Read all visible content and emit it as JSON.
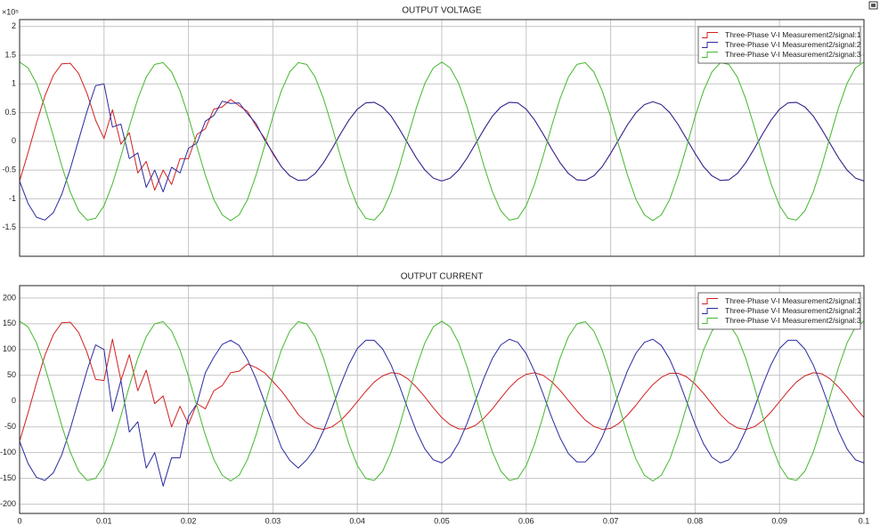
{
  "chart_data": [
    {
      "type": "line",
      "title": "OUTPUT VOLTAGE",
      "y_multiplier": "×10⁵",
      "x": [
        0,
        0.001,
        0.002,
        0.003,
        0.004,
        0.005,
        0.006,
        0.007,
        0.008,
        0.009,
        0.01,
        0.011,
        0.012,
        0.013,
        0.014,
        0.015,
        0.016,
        0.017,
        0.018,
        0.019,
        0.02,
        0.021,
        0.022,
        0.023,
        0.024,
        0.025,
        0.026,
        0.027,
        0.028,
        0.029,
        0.03,
        0.031,
        0.032,
        0.033,
        0.034,
        0.035,
        0.036,
        0.037,
        0.038,
        0.039,
        0.04,
        0.041,
        0.042,
        0.043,
        0.044,
        0.045,
        0.046,
        0.047,
        0.048,
        0.049,
        0.05,
        0.051,
        0.052,
        0.053,
        0.054,
        0.055,
        0.056,
        0.057,
        0.058,
        0.059,
        0.06,
        0.061,
        0.062,
        0.063,
        0.064,
        0.065,
        0.066,
        0.067,
        0.068,
        0.069,
        0.07,
        0.071,
        0.072,
        0.073,
        0.074,
        0.075,
        0.076,
        0.077,
        0.078,
        0.079,
        0.08,
        0.081,
        0.082,
        0.083,
        0.084,
        0.085,
        0.086,
        0.087,
        0.088,
        0.089,
        0.09,
        0.091,
        0.092,
        0.093,
        0.094,
        0.095,
        0.096,
        0.097,
        0.098,
        0.099,
        0.1
      ],
      "series": [
        {
          "name": "Three-Phase V-I Measurement2/signal:1",
          "color": "#d02020",
          "values": [
            -0.69,
            -0.2,
            0.32,
            0.79,
            1.15,
            1.35,
            1.36,
            1.18,
            0.83,
            0.37,
            0.05,
            0.55,
            -0.05,
            0.15,
            -0.55,
            -0.35,
            -0.85,
            -0.5,
            -0.75,
            -0.3,
            -0.3,
            0.12,
            0.22,
            0.56,
            0.6,
            0.73,
            0.62,
            0.52,
            0.27,
            0.06,
            -0.22,
            -0.44,
            -0.6,
            -0.68,
            -0.67,
            -0.56,
            -0.37,
            -0.13,
            0.13,
            0.37,
            0.56,
            0.67,
            0.68,
            0.6,
            0.44,
            0.21,
            -0.04,
            -0.29,
            -0.5,
            -0.64,
            -0.69,
            -0.64,
            -0.5,
            -0.29,
            -0.04,
            0.21,
            0.44,
            0.6,
            0.68,
            0.67,
            0.56,
            0.37,
            0.13,
            -0.13,
            -0.37,
            -0.56,
            -0.67,
            -0.68,
            -0.6,
            -0.44,
            -0.21,
            0.04,
            0.29,
            0.5,
            0.64,
            0.69,
            0.64,
            0.5,
            0.29,
            0.04,
            -0.21,
            -0.44,
            -0.6,
            -0.68,
            -0.67,
            -0.56,
            -0.37,
            -0.13,
            0.13,
            0.37,
            0.56,
            0.67,
            0.68,
            0.6,
            0.44,
            0.21,
            -0.04,
            -0.29,
            -0.5,
            -0.64,
            -0.69
          ]
        },
        {
          "name": "Three-Phase V-I Measurement2/signal:2",
          "color": "#2a2aa0",
          "values": [
            -0.69,
            -1.08,
            -1.32,
            -1.37,
            -1.24,
            -0.92,
            -0.48,
            0.03,
            0.53,
            0.97,
            1.0,
            0.25,
            0.3,
            -0.3,
            -0.2,
            -0.8,
            -0.5,
            -0.88,
            -0.45,
            -0.55,
            -0.12,
            -0.03,
            0.35,
            0.45,
            0.7,
            0.66,
            0.67,
            0.48,
            0.31,
            0.03,
            -0.2,
            -0.44,
            -0.6,
            -0.68,
            -0.67,
            -0.56,
            -0.37,
            -0.13,
            0.13,
            0.37,
            0.56,
            0.67,
            0.68,
            0.6,
            0.44,
            0.21,
            -0.04,
            -0.29,
            -0.5,
            -0.64,
            -0.69,
            -0.64,
            -0.5,
            -0.29,
            -0.04,
            0.21,
            0.44,
            0.6,
            0.68,
            0.67,
            0.56,
            0.37,
            0.13,
            -0.13,
            -0.37,
            -0.56,
            -0.67,
            -0.68,
            -0.6,
            -0.44,
            -0.21,
            0.04,
            0.29,
            0.5,
            0.64,
            0.69,
            0.64,
            0.5,
            0.29,
            0.04,
            -0.21,
            -0.44,
            -0.6,
            -0.68,
            -0.67,
            -0.56,
            -0.37,
            -0.13,
            0.13,
            0.37,
            0.56,
            0.67,
            0.68,
            0.6,
            0.44,
            0.21,
            -0.04,
            -0.29,
            -0.5,
            -0.64,
            -0.69
          ]
        },
        {
          "name": "Three-Phase V-I Measurement2/signal:3",
          "color": "#44b82e",
          "values": [
            1.38,
            1.28,
            1.01,
            0.59,
            0.09,
            -0.43,
            -0.88,
            -1.21,
            -1.37,
            -1.34,
            -1.12,
            -0.74,
            -0.26,
            0.26,
            0.74,
            1.12,
            1.34,
            1.37,
            1.21,
            0.88,
            0.43,
            -0.09,
            -0.59,
            -1.01,
            -1.28,
            -1.38,
            -1.28,
            -1.01,
            -0.59,
            -0.09,
            0.43,
            0.88,
            1.21,
            1.37,
            1.34,
            1.12,
            0.74,
            0.26,
            -0.26,
            -0.74,
            -1.12,
            -1.34,
            -1.37,
            -1.21,
            -0.88,
            -0.43,
            0.09,
            0.59,
            1.01,
            1.28,
            1.38,
            1.28,
            1.01,
            0.59,
            0.09,
            -0.43,
            -0.88,
            -1.21,
            -1.37,
            -1.34,
            -1.12,
            -0.74,
            -0.26,
            0.26,
            0.74,
            1.12,
            1.34,
            1.37,
            1.21,
            0.88,
            0.43,
            -0.09,
            -0.59,
            -1.01,
            -1.28,
            -1.38,
            -1.28,
            -1.01,
            -0.59,
            -0.09,
            0.43,
            0.88,
            1.21,
            1.37,
            1.34,
            1.12,
            0.74,
            0.26,
            -0.26,
            -0.74,
            -1.12,
            -1.34,
            -1.37,
            -1.21,
            -0.88,
            -0.43,
            0.09,
            0.59,
            1.01,
            1.28,
            1.38
          ]
        }
      ],
      "xlim": [
        0,
        0.1
      ],
      "ylim": [
        -2,
        2.12
      ],
      "yticks": [
        -1.5,
        -1,
        -0.5,
        0,
        0.5,
        1,
        1.5,
        2
      ],
      "grid": true,
      "legend": "upper right"
    },
    {
      "type": "line",
      "title": "OUTPUT CURRENT",
      "x": [
        0,
        0.001,
        0.002,
        0.003,
        0.004,
        0.005,
        0.006,
        0.007,
        0.008,
        0.009,
        0.01,
        0.011,
        0.012,
        0.013,
        0.014,
        0.015,
        0.016,
        0.017,
        0.018,
        0.019,
        0.02,
        0.021,
        0.022,
        0.023,
        0.024,
        0.025,
        0.026,
        0.027,
        0.028,
        0.029,
        0.03,
        0.031,
        0.032,
        0.033,
        0.034,
        0.035,
        0.036,
        0.037,
        0.038,
        0.039,
        0.04,
        0.041,
        0.042,
        0.043,
        0.044,
        0.045,
        0.046,
        0.047,
        0.048,
        0.049,
        0.05,
        0.051,
        0.052,
        0.053,
        0.054,
        0.055,
        0.056,
        0.057,
        0.058,
        0.059,
        0.06,
        0.061,
        0.062,
        0.063,
        0.064,
        0.065,
        0.066,
        0.067,
        0.068,
        0.069,
        0.07,
        0.071,
        0.072,
        0.073,
        0.074,
        0.075,
        0.076,
        0.077,
        0.078,
        0.079,
        0.08,
        0.081,
        0.082,
        0.083,
        0.084,
        0.085,
        0.086,
        0.087,
        0.088,
        0.089,
        0.09,
        0.091,
        0.092,
        0.093,
        0.094,
        0.095,
        0.096,
        0.097,
        0.098,
        0.099,
        0.1
      ],
      "series": [
        {
          "name": "Three-Phase V-I Measurement2/signal:1",
          "color": "#d02020",
          "values": [
            -78,
            -23,
            35,
            89,
            129,
            152,
            153,
            133,
            94,
            42,
            40,
            120,
            40,
            90,
            20,
            60,
            -5,
            10,
            -50,
            -10,
            -45,
            -5,
            -15,
            20,
            30,
            55,
            58,
            72,
            65,
            55,
            38,
            20,
            -2,
            -26,
            -42,
            -52,
            -55,
            -50,
            -38,
            -21,
            -1,
            19,
            37,
            49,
            55,
            53,
            43,
            27,
            8,
            -13,
            -32,
            -46,
            -54,
            -54,
            -47,
            -33,
            -15,
            6,
            26,
            42,
            52,
            55,
            50,
            38,
            21,
            1,
            -19,
            -37,
            -49,
            -55,
            -53,
            -43,
            -27,
            -8,
            13,
            32,
            46,
            54,
            54,
            47,
            33,
            15,
            -6,
            -26,
            -42,
            -52,
            -55,
            -50,
            -38,
            -21,
            -1,
            19,
            37,
            49,
            55,
            53,
            43,
            27,
            8,
            -13,
            -32
          ]
        },
        {
          "name": "Three-Phase V-I Measurement2/signal:2",
          "color": "#2a2aa0",
          "values": [
            -78,
            -121,
            -148,
            -154,
            -139,
            -104,
            -54,
            3,
            60,
            109,
            100,
            -20,
            40,
            -60,
            -40,
            -130,
            -100,
            -165,
            -110,
            -110,
            -30,
            -5,
            55,
            85,
            110,
            118,
            108,
            80,
            43,
            -1,
            -45,
            -90,
            -115,
            -130,
            -114,
            -92,
            -57,
            -14,
            31,
            71,
            102,
            118,
            118,
            101,
            70,
            29,
            -16,
            -59,
            -93,
            -114,
            -120,
            -108,
            -81,
            -43,
            1,
            45,
            83,
            109,
            120,
            114,
            92,
            57,
            14,
            -31,
            -71,
            -102,
            -118,
            -118,
            -101,
            -70,
            -29,
            16,
            59,
            93,
            114,
            120,
            108,
            81,
            43,
            -1,
            -45,
            -83,
            -109,
            -120,
            -114,
            -92,
            -57,
            -14,
            31,
            71,
            102,
            118,
            118,
            101,
            70,
            29,
            -16,
            -59,
            -93,
            -114,
            -120
          ]
        },
        {
          "name": "Three-Phase V-I Measurement2/signal:3",
          "color": "#44b82e",
          "values": [
            155,
            144,
            113,
            66,
            10,
            -48,
            -99,
            -136,
            -154,
            -150,
            -125,
            -83,
            -29,
            29,
            83,
            125,
            150,
            154,
            136,
            99,
            48,
            -10,
            -66,
            -113,
            -144,
            -155,
            -144,
            -113,
            -66,
            -10,
            48,
            99,
            136,
            154,
            150,
            125,
            83,
            29,
            -29,
            -83,
            -125,
            -150,
            -154,
            -136,
            -99,
            -48,
            10,
            66,
            113,
            144,
            155,
            144,
            113,
            66,
            10,
            -48,
            -99,
            -136,
            -154,
            -150,
            -125,
            -83,
            -29,
            29,
            83,
            125,
            150,
            154,
            136,
            99,
            48,
            -10,
            -66,
            -113,
            -144,
            -155,
            -144,
            -113,
            -66,
            -10,
            48,
            99,
            136,
            154,
            150,
            125,
            83,
            29,
            -29,
            -83,
            -125,
            -150,
            -154,
            -136,
            -99,
            -48,
            10,
            66,
            113,
            144,
            155
          ]
        }
      ],
      "xlim": [
        0,
        0.1
      ],
      "ylim": [
        -218,
        224
      ],
      "xticks": [
        0,
        0.01,
        0.02,
        0.03,
        0.04,
        0.05,
        0.06,
        0.07,
        0.08,
        0.09,
        0.1
      ],
      "yticks": [
        -200,
        -150,
        -100,
        -50,
        0,
        50,
        100,
        150,
        200
      ],
      "grid": true,
      "legend": "upper right"
    }
  ]
}
